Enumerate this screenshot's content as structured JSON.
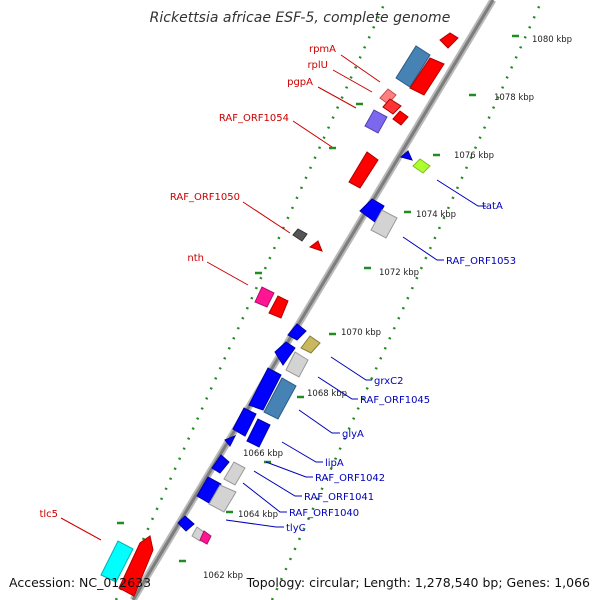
{
  "title": "Rickettsia africae ESF-5, complete genome",
  "footer": {
    "accession": "Accession: NC_012633",
    "summary": "Topology: circular; Length: 1,278,540 bp; Genes: 1,066"
  },
  "colors": {
    "forward_label": "#cc0000",
    "reverse_label": "#0000bb",
    "backbone": "#999999",
    "scale_dots": "#228b22"
  },
  "scale_labels": [
    "1062 kbp",
    "1064 kbp",
    "1066 kbp",
    "1068 kbp",
    "1070 kbp",
    "1072 kbp",
    "1074 kbp",
    "1076 kbp",
    "1078 kbp",
    "1080 kbp"
  ],
  "forward_labels": [
    "rpmA",
    "rplU",
    "pgpA",
    "RAF_ORF1054",
    "RAF_ORF1050",
    "nth",
    "tlc5"
  ],
  "reverse_labels": [
    "tatA",
    "RAF_ORF1053",
    "grxC2",
    "RAF_ORF1045",
    "glyA",
    "lipA",
    "RAF_ORF1042",
    "RAF_ORF1041",
    "RAF_ORF1040",
    "tlyC"
  ]
}
